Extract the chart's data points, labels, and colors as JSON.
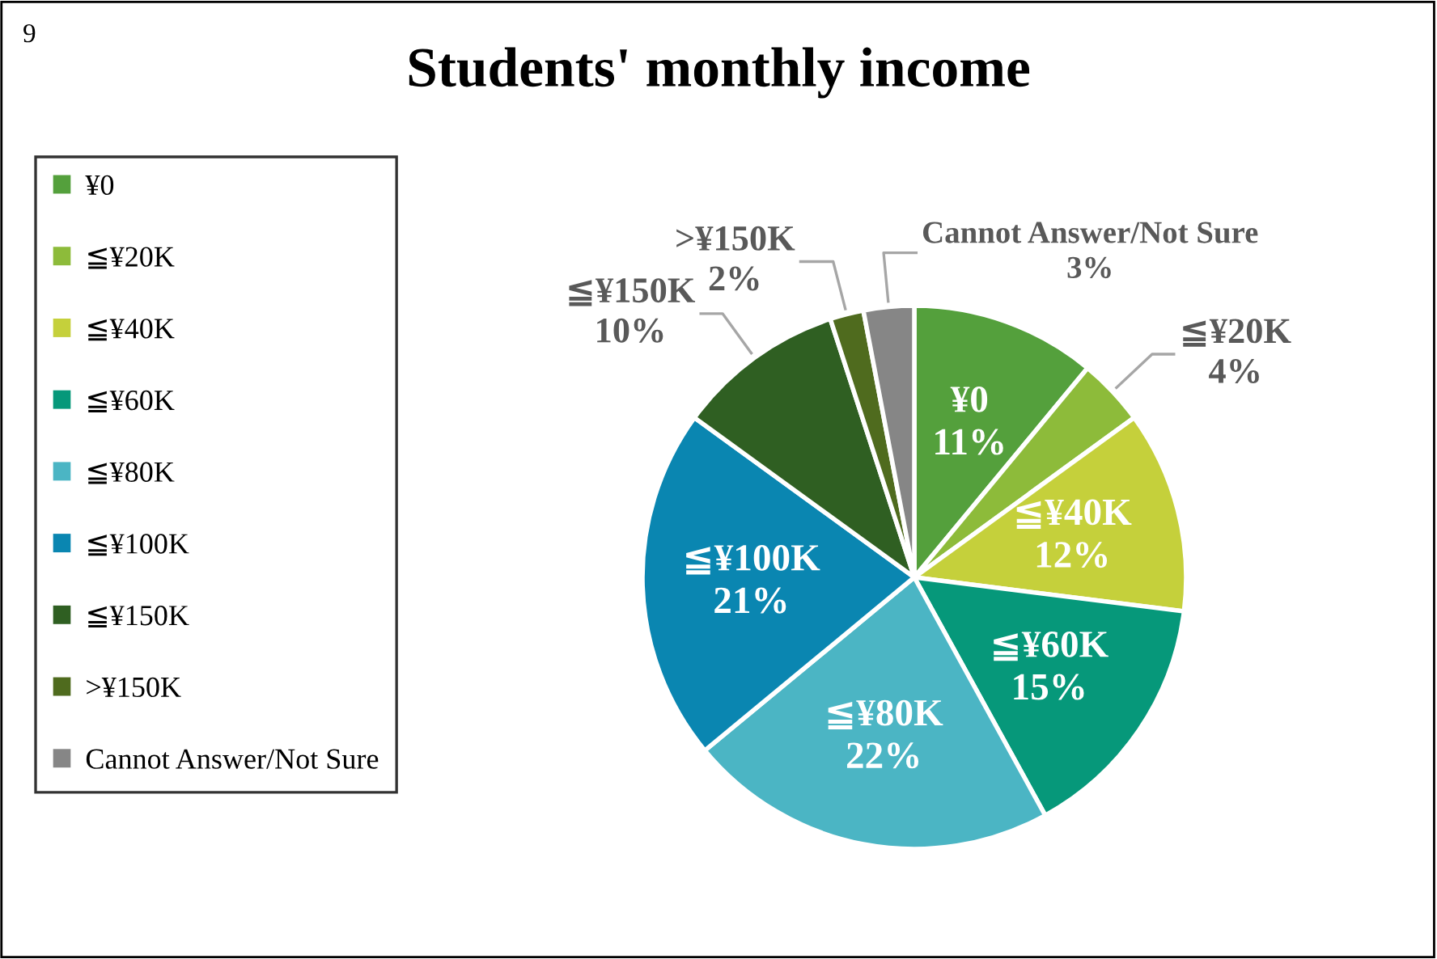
{
  "chart_data": {
    "type": "pie",
    "title": "Students' monthly income",
    "categories": [
      "¥0",
      "≦¥20K",
      "≦¥40K",
      "≦¥60K",
      "≦¥80K",
      "≦¥100K",
      "≦¥150K",
      ">¥150K",
      "Cannot Answer/Not Sure"
    ],
    "values": [
      11,
      4,
      12,
      15,
      22,
      21,
      10,
      2,
      3
    ],
    "colors": [
      "#54a03c",
      "#8dbb3a",
      "#c5d03b",
      "#06987a",
      "#4bb5c4",
      "#0a86b1",
      "#2f5f22",
      "#4f6b1e",
      "#868686"
    ],
    "value_labels": [
      "11%",
      "4%",
      "12%",
      "15%",
      "22%",
      "21%",
      "10%",
      "2%",
      "3%"
    ],
    "annotations": [
      "9"
    ],
    "legend": "left"
  }
}
